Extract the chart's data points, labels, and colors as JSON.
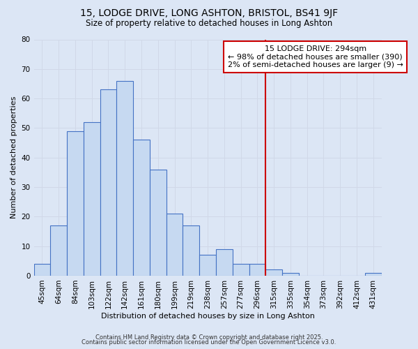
{
  "title_line1": "15, LODGE DRIVE, LONG ASHTON, BRISTOL, BS41 9JF",
  "title_line2": "Size of property relative to detached houses in Long Ashton",
  "xlabel": "Distribution of detached houses by size in Long Ashton",
  "ylabel": "Number of detached properties",
  "bar_labels": [
    "45sqm",
    "64sqm",
    "84sqm",
    "103sqm",
    "122sqm",
    "142sqm",
    "161sqm",
    "180sqm",
    "199sqm",
    "219sqm",
    "238sqm",
    "257sqm",
    "277sqm",
    "296sqm",
    "315sqm",
    "335sqm",
    "354sqm",
    "373sqm",
    "392sqm",
    "412sqm",
    "431sqm"
  ],
  "bar_values": [
    4,
    17,
    49,
    52,
    63,
    66,
    46,
    36,
    21,
    17,
    7,
    9,
    4,
    4,
    2,
    1,
    0,
    0,
    0,
    0,
    1
  ],
  "bar_color": "#c6d9f1",
  "bar_edge_color": "#4472c4",
  "vline_x_index": 13.5,
  "vline_color": "#cc0000",
  "annotation_text": "15 LODGE DRIVE: 294sqm\n← 98% of detached houses are smaller (390)\n2% of semi-detached houses are larger (9) →",
  "annotation_box_color": "#ffffff",
  "annotation_box_edge_color": "#cc0000",
  "annotation_fontsize": 8,
  "ylim": [
    0,
    80
  ],
  "yticks": [
    0,
    10,
    20,
    30,
    40,
    50,
    60,
    70,
    80
  ],
  "grid_color": "#d0d8e8",
  "bg_color": "#dce6f5",
  "plot_bg_color": "#dce6f5",
  "footer_line1": "Contains HM Land Registry data © Crown copyright and database right 2025.",
  "footer_line2": "Contains public sector information licensed under the Open Government Licence v3.0.",
  "title_fontsize": 10,
  "subtitle_fontsize": 8.5,
  "ylabel_fontsize": 8,
  "xlabel_fontsize": 8,
  "tick_fontsize": 7.5,
  "footer_fontsize": 6
}
